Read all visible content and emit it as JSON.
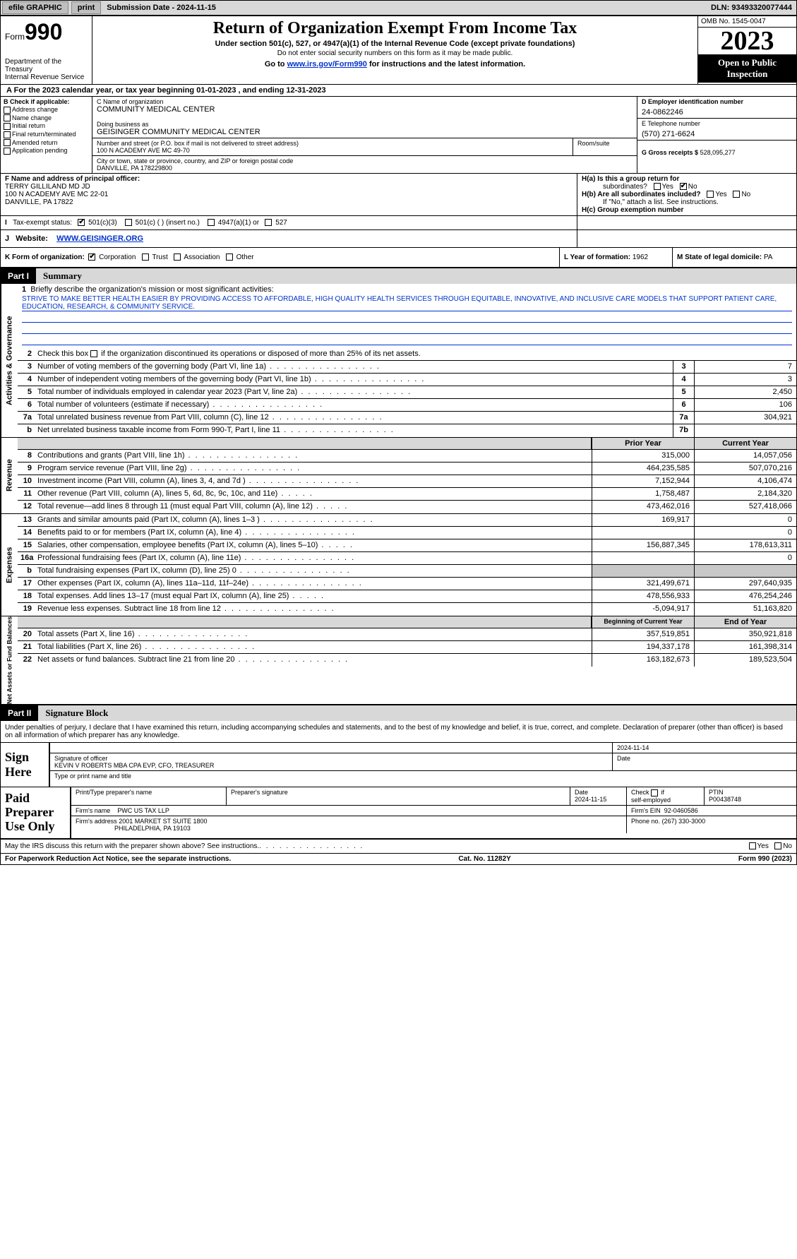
{
  "topBar": {
    "efile": "efile GRAPHIC",
    "print": "print",
    "submissionLabel": "Submission Date - 2024-11-15",
    "dln": "DLN: 93493320077444"
  },
  "header": {
    "formPrefix": "Form",
    "formNum": "990",
    "dept": "Department of the Treasury",
    "irs": "Internal Revenue Service",
    "title": "Return of Organization Exempt From Income Tax",
    "subtitle": "Under section 501(c), 527, or 4947(a)(1) of the Internal Revenue Code (except private foundations)",
    "note1": "Do not enter social security numbers on this form as it may be made public.",
    "goto": "Go to ",
    "gotoLink": "www.irs.gov/Form990",
    "gotoRest": " for instructions and the latest information.",
    "omb": "OMB No. 1545-0047",
    "year": "2023",
    "inspect": "Open to Public Inspection"
  },
  "periodRow": "For the 2023 calendar year, or tax year beginning 01-01-2023    , and ending 12-31-2023",
  "boxB": {
    "label": "B Check if applicable:",
    "items": [
      "Address change",
      "Name change",
      "Initial return",
      "Final return/terminated",
      "Amended return",
      "Application pending"
    ]
  },
  "boxC": {
    "nameLabel": "C Name of organization",
    "name": "COMMUNITY MEDICAL CENTER",
    "dbaLabel": "Doing business as",
    "dba": "GEISINGER COMMUNITY MEDICAL CENTER",
    "addrLabel": "Number and street (or P.O. box if mail is not delivered to street address)",
    "addr": "100 N ACADEMY AVE MC 49-70",
    "suiteLabel": "Room/suite",
    "cityLabel": "City or town, state or province, country, and ZIP or foreign postal code",
    "city": "DANVILLE, PA   178229800"
  },
  "boxD": {
    "einLabel": "D Employer identification number",
    "ein": "24-0862246",
    "phoneLabel": "E Telephone number",
    "phone": "(570) 271-6624",
    "grossLabel": "G Gross receipts $",
    "gross": "528,095,277"
  },
  "boxF": {
    "label": "F  Name and address of principal officer:",
    "name": "TERRY GILLILAND MD JD",
    "addr": "100 N ACADEMY AVE MC 22-01",
    "city": "DANVILLE, PA   17822"
  },
  "boxH": {
    "a": "H(a)  Is this a group return for",
    "aSub": "subordinates?",
    "b": "H(b)  Are all subordinates included?",
    "bNote": "If \"No,\" attach a list. See instructions.",
    "c": "H(c)  Group exemption number"
  },
  "rowI": {
    "label": "Tax-exempt status:",
    "opts": [
      "501(c)(3)",
      "501(c) (  ) (insert no.)",
      "4947(a)(1) or",
      "527"
    ]
  },
  "rowJ": {
    "label": "Website:",
    "value": "WWW.GEISINGER.ORG"
  },
  "rowK": {
    "label": "K Form of organization:",
    "opts": [
      "Corporation",
      "Trust",
      "Association",
      "Other"
    ],
    "yearLabel": "L Year of formation:",
    "year": "1962",
    "stateLabel": "M State of legal domicile:",
    "state": "PA"
  },
  "part1": {
    "label": "Part I",
    "title": "Summary"
  },
  "activities": {
    "tab": "Activities & Governance",
    "q1": "Briefly describe the organization's mission or most significant activities:",
    "mission": "STRIVE TO MAKE BETTER HEALTH EASIER BY PROVIDING ACCESS TO AFFORDABLE, HIGH QUALITY HEALTH SERVICES THROUGH EQUITABLE, INNOVATIVE, AND INCLUSIVE CARE MODELS THAT SUPPORT PATIENT CARE, EDUCATION, RESEARCH, & COMMUNITY SERVICE.",
    "q2": "Check this box          if the organization discontinued its operations or disposed of more than 25% of its net assets.",
    "rows": [
      {
        "n": "3",
        "d": "Number of voting members of the governing body (Part VI, line 1a)",
        "box": "3",
        "v": "7"
      },
      {
        "n": "4",
        "d": "Number of independent voting members of the governing body (Part VI, line 1b)",
        "box": "4",
        "v": "3"
      },
      {
        "n": "5",
        "d": "Total number of individuals employed in calendar year 2023 (Part V, line 2a)",
        "box": "5",
        "v": "2,450"
      },
      {
        "n": "6",
        "d": "Total number of volunteers (estimate if necessary)",
        "box": "6",
        "v": "106"
      },
      {
        "n": "7a",
        "d": "Total unrelated business revenue from Part VIII, column (C), line 12",
        "box": "7a",
        "v": "304,921"
      },
      {
        "n": "b",
        "d": "Net unrelated business taxable income from Form 990-T, Part I, line 11",
        "box": "7b",
        "v": ""
      }
    ]
  },
  "revenue": {
    "tab": "Revenue",
    "hdrPrior": "Prior Year",
    "hdrCurrent": "Current Year",
    "rows": [
      {
        "n": "8",
        "d": "Contributions and grants (Part VIII, line 1h)",
        "p": "315,000",
        "c": "14,057,056"
      },
      {
        "n": "9",
        "d": "Program service revenue (Part VIII, line 2g)",
        "p": "464,235,585",
        "c": "507,070,216"
      },
      {
        "n": "10",
        "d": "Investment income (Part VIII, column (A), lines 3, 4, and 7d )",
        "p": "7,152,944",
        "c": "4,106,474"
      },
      {
        "n": "11",
        "d": "Other revenue (Part VIII, column (A), lines 5, 6d, 8c, 9c, 10c, and 11e)",
        "p": "1,758,487",
        "c": "2,184,320"
      },
      {
        "n": "12",
        "d": "Total revenue—add lines 8 through 11 (must equal Part VIII, column (A), line 12)",
        "p": "473,462,016",
        "c": "527,418,066"
      }
    ]
  },
  "expenses": {
    "tab": "Expenses",
    "rows": [
      {
        "n": "13",
        "d": "Grants and similar amounts paid (Part IX, column (A), lines 1–3 )",
        "p": "169,917",
        "c": "0"
      },
      {
        "n": "14",
        "d": "Benefits paid to or for members (Part IX, column (A), line 4)",
        "p": "",
        "c": "0"
      },
      {
        "n": "15",
        "d": "Salaries, other compensation, employee benefits (Part IX, column (A), lines 5–10)",
        "p": "156,887,345",
        "c": "178,613,311"
      },
      {
        "n": "16a",
        "d": "Professional fundraising fees (Part IX, column (A), line 11e)",
        "p": "",
        "c": "0"
      },
      {
        "n": "b",
        "d": "Total fundraising expenses (Part IX, column (D), line 25) 0",
        "p": "grey",
        "c": "grey"
      },
      {
        "n": "17",
        "d": "Other expenses (Part IX, column (A), lines 11a–11d, 11f–24e)",
        "p": "321,499,671",
        "c": "297,640,935"
      },
      {
        "n": "18",
        "d": "Total expenses. Add lines 13–17 (must equal Part IX, column (A), line 25)",
        "p": "478,556,933",
        "c": "476,254,246"
      },
      {
        "n": "19",
        "d": "Revenue less expenses. Subtract line 18 from line 12",
        "p": "-5,094,917",
        "c": "51,163,820"
      }
    ]
  },
  "netAssets": {
    "tab": "Net Assets or Fund Balances",
    "hdrBeg": "Beginning of Current Year",
    "hdrEnd": "End of Year",
    "rows": [
      {
        "n": "20",
        "d": "Total assets (Part X, line 16)",
        "p": "357,519,851",
        "c": "350,921,818"
      },
      {
        "n": "21",
        "d": "Total liabilities (Part X, line 26)",
        "p": "194,337,178",
        "c": "161,398,314"
      },
      {
        "n": "22",
        "d": "Net assets or fund balances. Subtract line 21 from line 20",
        "p": "163,182,673",
        "c": "189,523,504"
      }
    ]
  },
  "part2": {
    "label": "Part II",
    "title": "Signature Block"
  },
  "sigIntro": "Under penalties of perjury, I declare that I have examined this return, including accompanying schedules and statements, and to the best of my knowledge and belief, it is true, correct, and complete. Declaration of preparer (other than officer) is based on all information of which preparer has any knowledge.",
  "sign": {
    "label": "Sign Here",
    "date": "2024-11-14",
    "sigOfficer": "Signature of officer",
    "officer": "KEVIN V ROBERTS MBA CPA  EVP, CFO, TREASURER",
    "typeLabel": "Type or print name and title",
    "dateLabel": "Date"
  },
  "paid": {
    "label": "Paid Preparer Use Only",
    "h1": "Print/Type preparer's name",
    "h2": "Preparer's signature",
    "h3": "Date",
    "date": "2024-11-15",
    "h4": "Check        if self-employed",
    "h5": "PTIN",
    "ptin": "P00438748",
    "firmNameLabel": "Firm's name",
    "firmName": "PWC US TAX LLP",
    "firmEinLabel": "Firm's EIN",
    "firmEin": "92-0460586",
    "firmAddrLabel": "Firm's address",
    "firmAddr": "2001 MARKET ST SUITE 1800",
    "firmCity": "PHILADELPHIA, PA   19103",
    "phoneLabel": "Phone no.",
    "phone": "(267) 330-3000"
  },
  "discuss": "May the IRS discuss this return with the preparer shown above? See instructions.",
  "footer": {
    "left": "For Paperwork Reduction Act Notice, see the separate instructions.",
    "mid": "Cat. No. 11282Y",
    "right": "Form 990 (2023)"
  },
  "yes": "Yes",
  "no": "No"
}
